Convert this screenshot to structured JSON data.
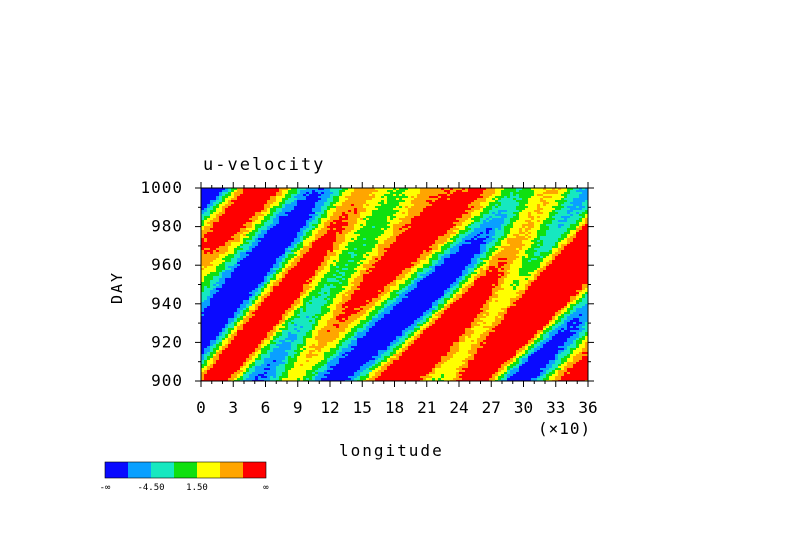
{
  "chart_data": {
    "type": "heatmap",
    "title": "u-velocity",
    "xlabel": "longitude",
    "ylabel": "DAY",
    "x_multiplier_label": "(×10)",
    "xlim": [
      0,
      36
    ],
    "ylim": [
      900,
      1000
    ],
    "x_ticks": [
      0,
      3,
      6,
      9,
      12,
      15,
      18,
      21,
      24,
      27,
      30,
      33,
      36
    ],
    "y_ticks": [
      900,
      920,
      940,
      960,
      980,
      1000
    ],
    "x_tick_labels": [
      "0",
      "3",
      "6",
      "9",
      "12",
      "15",
      "18",
      "21",
      "24",
      "27",
      "30",
      "33",
      "36"
    ],
    "y_tick_labels": [
      "900",
      "920",
      "940",
      "960",
      "980",
      "1000"
    ],
    "colorbar": {
      "colors": [
        "#0a0aff",
        "#0aa0ff",
        "#16e8c0",
        "#10e010",
        "#ffff00",
        "#ffa500",
        "#ff0000"
      ],
      "labels": [
        "-∞",
        "-4.50",
        "1.50",
        "∞"
      ]
    }
  }
}
